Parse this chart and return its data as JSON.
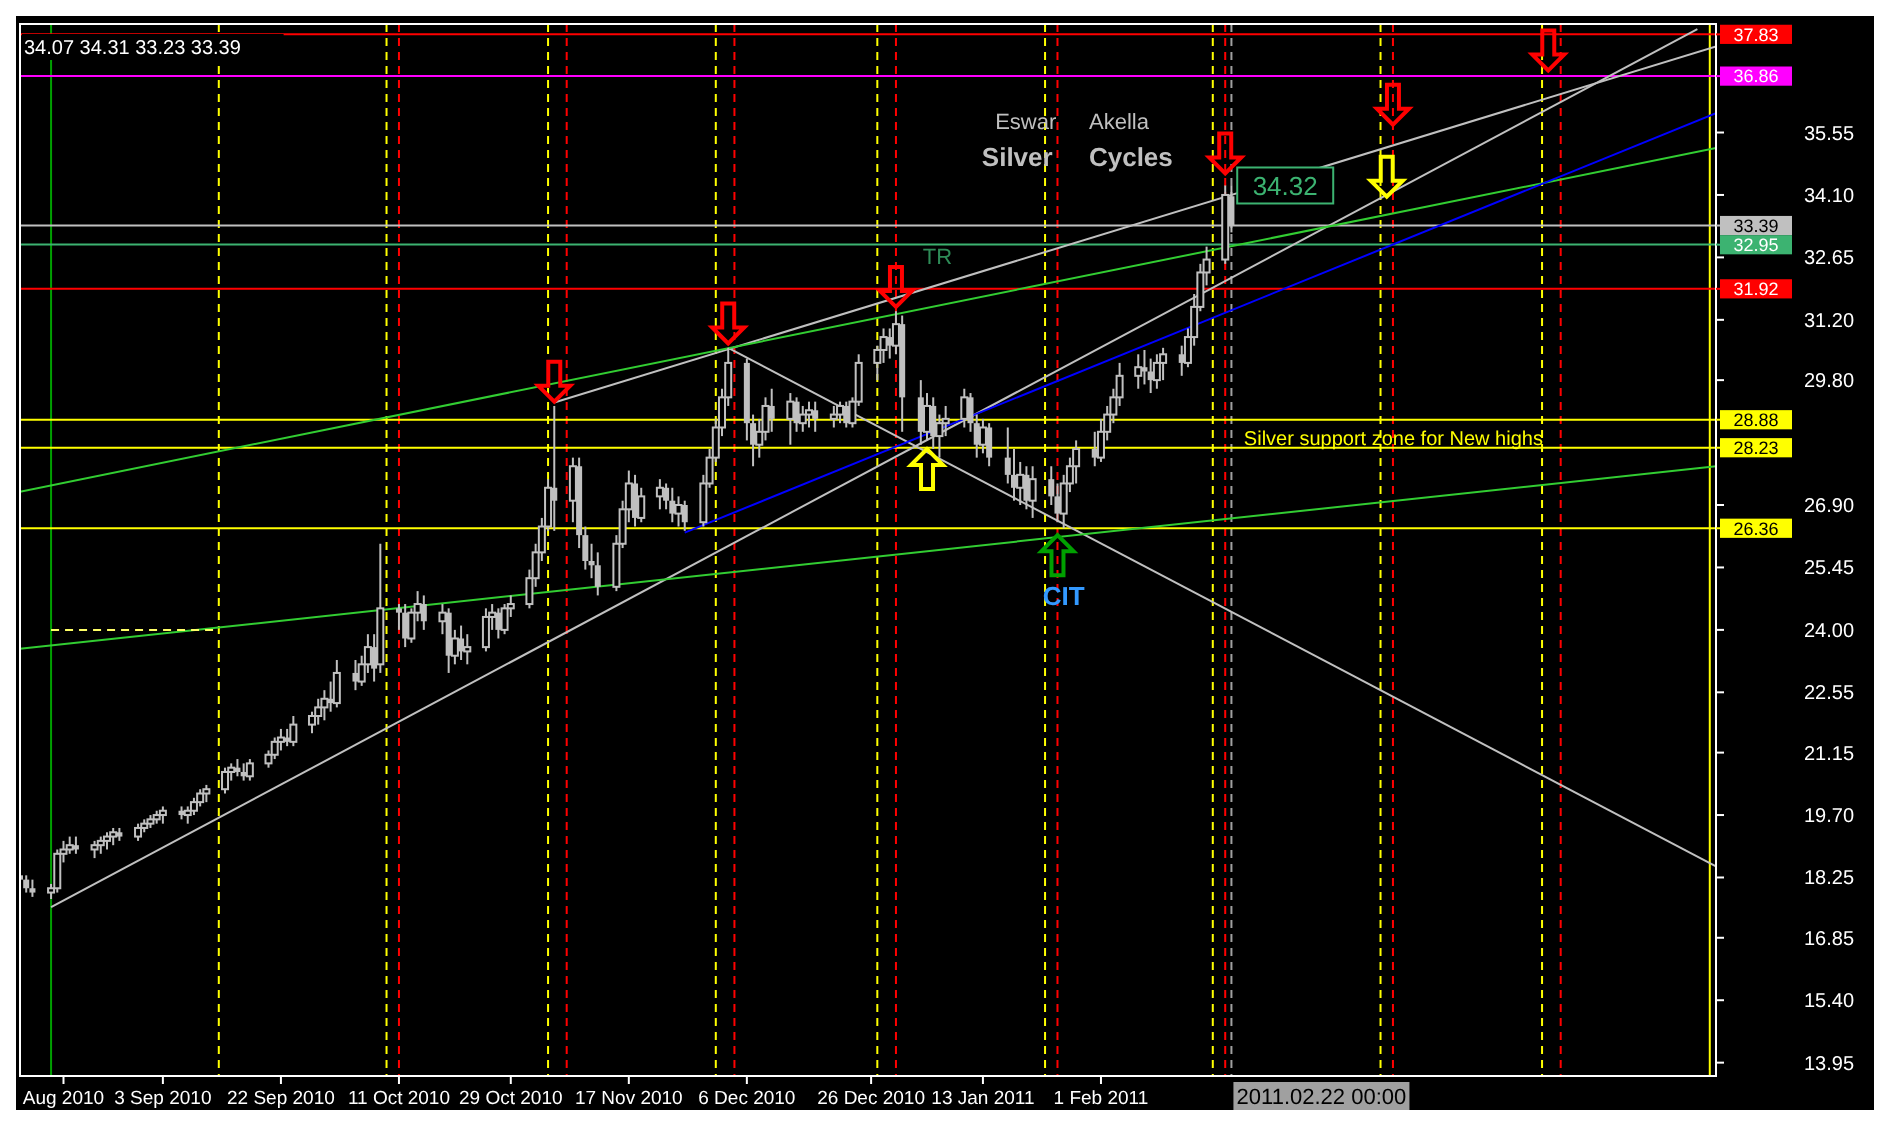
{
  "chart_data": {
    "type": "candlestick",
    "color": "#c0c0c0",
    "x": [
      "2010-08-11",
      "2010-08-12",
      "2010-08-13",
      "2010-08-16",
      "2010-08-17",
      "2010-08-18",
      "2010-08-19",
      "2010-08-20",
      "2010-08-23",
      "2010-08-24",
      "2010-08-25",
      "2010-08-26",
      "2010-08-27",
      "2010-08-30",
      "2010-08-31",
      "2010-09-01",
      "2010-09-02",
      "2010-09-03",
      "2010-09-06",
      "2010-09-07",
      "2010-09-08",
      "2010-09-09",
      "2010-09-10",
      "2010-09-13",
      "2010-09-14",
      "2010-09-15",
      "2010-09-16",
      "2010-09-17",
      "2010-09-20",
      "2010-09-21",
      "2010-09-22",
      "2010-09-23",
      "2010-09-24",
      "2010-09-27",
      "2010-09-28",
      "2010-09-29",
      "2010-09-30",
      "2010-10-01",
      "2010-10-04",
      "2010-10-05",
      "2010-10-06",
      "2010-10-07",
      "2010-10-08",
      "2010-10-11",
      "2010-10-12",
      "2010-10-13",
      "2010-10-14",
      "2010-10-15",
      "2010-10-18",
      "2010-10-19",
      "2010-10-20",
      "2010-10-21",
      "2010-10-22",
      "2010-10-25",
      "2010-10-26",
      "2010-10-27",
      "2010-10-28",
      "2010-10-29",
      "2010-11-01",
      "2010-11-02",
      "2010-11-03",
      "2010-11-04",
      "2010-11-05",
      "2010-11-08",
      "2010-11-09",
      "2010-11-10",
      "2010-11-11",
      "2010-11-12",
      "2010-11-15",
      "2010-11-16",
      "2010-11-17",
      "2010-11-18",
      "2010-11-19",
      "2010-11-22",
      "2010-11-23",
      "2010-11-24",
      "2010-11-25",
      "2010-11-26",
      "2010-11-29",
      "2010-11-30",
      "2010-12-01",
      "2010-12-02",
      "2010-12-03",
      "2010-12-06",
      "2010-12-07",
      "2010-12-08",
      "2010-12-09",
      "2010-12-10",
      "2010-12-13",
      "2010-12-14",
      "2010-12-15",
      "2010-12-16",
      "2010-12-17",
      "2010-12-20",
      "2010-12-21",
      "2010-12-22",
      "2010-12-23",
      "2010-12-24",
      "2010-12-27",
      "2010-12-28",
      "2010-12-29",
      "2010-12-30",
      "2010-12-31",
      "2011-01-03",
      "2011-01-04",
      "2011-01-05",
      "2011-01-06",
      "2011-01-07",
      "2011-01-10",
      "2011-01-11",
      "2011-01-12",
      "2011-01-13",
      "2011-01-14",
      "2011-01-17",
      "2011-01-18",
      "2011-01-19",
      "2011-01-20",
      "2011-01-21",
      "2011-01-24",
      "2011-01-25",
      "2011-01-26",
      "2011-01-27",
      "2011-01-28",
      "2011-01-31",
      "2011-02-01",
      "2011-02-02",
      "2011-02-03",
      "2011-02-04",
      "2011-02-07",
      "2011-02-08",
      "2011-02-09",
      "2011-02-10",
      "2011-02-11",
      "2011-02-14",
      "2011-02-15",
      "2011-02-16",
      "2011-02-17",
      "2011-02-18",
      "2011-02-21",
      "2011-02-22"
    ],
    "ohlc": [
      [
        18.3,
        18.5,
        18.1,
        18.2
      ],
      [
        18.2,
        18.3,
        17.9,
        18.0
      ],
      [
        18.0,
        18.2,
        17.8,
        17.9
      ],
      [
        17.9,
        18.1,
        17.75,
        18.0
      ],
      [
        18.0,
        18.9,
        17.9,
        18.8
      ],
      [
        18.8,
        19.1,
        18.6,
        18.9
      ],
      [
        18.9,
        19.2,
        18.8,
        19.0
      ],
      [
        19.0,
        19.2,
        18.8,
        18.9
      ],
      [
        18.9,
        19.1,
        18.7,
        19.0
      ],
      [
        19.0,
        19.2,
        18.8,
        19.1
      ],
      [
        19.1,
        19.3,
        18.9,
        19.2
      ],
      [
        19.2,
        19.4,
        19.0,
        19.3
      ],
      [
        19.3,
        19.4,
        19.1,
        19.2
      ],
      [
        19.2,
        19.5,
        19.1,
        19.4
      ],
      [
        19.4,
        19.6,
        19.3,
        19.5
      ],
      [
        19.5,
        19.7,
        19.4,
        19.6
      ],
      [
        19.6,
        19.8,
        19.5,
        19.7
      ],
      [
        19.7,
        19.9,
        19.5,
        19.8
      ],
      [
        19.8,
        19.9,
        19.6,
        19.7
      ],
      [
        19.7,
        19.9,
        19.5,
        19.8
      ],
      [
        19.8,
        20.1,
        19.7,
        20.0
      ],
      [
        20.0,
        20.3,
        19.9,
        20.2
      ],
      [
        20.2,
        20.4,
        20.0,
        20.3
      ],
      [
        20.3,
        20.8,
        20.2,
        20.7
      ],
      [
        20.7,
        20.9,
        20.5,
        20.8
      ],
      [
        20.8,
        21.0,
        20.6,
        20.7
      ],
      [
        20.7,
        20.9,
        20.5,
        20.6
      ],
      [
        20.6,
        21.0,
        20.5,
        20.9
      ],
      [
        20.9,
        21.2,
        20.8,
        21.1
      ],
      [
        21.1,
        21.5,
        21.0,
        21.4
      ],
      [
        21.4,
        21.7,
        21.2,
        21.5
      ],
      [
        21.5,
        21.7,
        21.3,
        21.4
      ],
      [
        21.4,
        22.0,
        21.3,
        21.8
      ],
      [
        21.8,
        22.1,
        21.6,
        22.0
      ],
      [
        22.0,
        22.4,
        21.8,
        22.2
      ],
      [
        22.2,
        22.6,
        21.9,
        22.4
      ],
      [
        22.4,
        22.8,
        22.1,
        22.3
      ],
      [
        22.3,
        23.3,
        22.2,
        23.0
      ],
      [
        23.0,
        23.3,
        22.6,
        22.8
      ],
      [
        22.8,
        23.4,
        22.7,
        23.2
      ],
      [
        23.2,
        23.9,
        23.0,
        23.6
      ],
      [
        23.6,
        23.9,
        22.8,
        23.1
      ],
      [
        23.2,
        26.0,
        23.0,
        24.5
      ],
      [
        24.5,
        24.6,
        24.0,
        24.4
      ],
      [
        24.4,
        24.6,
        23.6,
        23.8
      ],
      [
        23.8,
        24.5,
        23.7,
        24.4
      ],
      [
        24.4,
        24.9,
        24.2,
        24.6
      ],
      [
        24.6,
        24.8,
        24.0,
        24.2
      ],
      [
        24.2,
        24.6,
        23.9,
        24.4
      ],
      [
        24.4,
        24.5,
        23.0,
        23.4
      ],
      [
        23.4,
        24.0,
        23.2,
        23.8
      ],
      [
        23.8,
        24.1,
        23.3,
        23.5
      ],
      [
        23.5,
        23.9,
        23.2,
        23.6
      ],
      [
        23.6,
        24.5,
        23.5,
        24.3
      ],
      [
        24.3,
        24.6,
        24.0,
        24.4
      ],
      [
        24.4,
        24.5,
        23.8,
        24.0
      ],
      [
        24.0,
        24.6,
        23.9,
        24.5
      ],
      [
        24.5,
        24.8,
        24.3,
        24.6
      ],
      [
        24.6,
        25.4,
        24.5,
        25.2
      ],
      [
        25.2,
        26.0,
        25.0,
        25.8
      ],
      [
        25.8,
        26.6,
        25.6,
        26.4
      ],
      [
        26.4,
        27.5,
        26.3,
        27.3
      ],
      [
        27.3,
        29.2,
        26.3,
        27.0
      ],
      [
        27.0,
        28.0,
        26.5,
        27.8
      ],
      [
        27.8,
        28.0,
        25.9,
        26.2
      ],
      [
        26.2,
        26.4,
        25.4,
        25.6
      ],
      [
        25.6,
        26.0,
        25.2,
        25.5
      ],
      [
        25.5,
        25.8,
        24.8,
        25.0
      ],
      [
        25.0,
        26.2,
        24.9,
        26.0
      ],
      [
        26.0,
        27.0,
        25.9,
        26.8
      ],
      [
        26.8,
        27.7,
        26.5,
        27.4
      ],
      [
        27.4,
        27.6,
        26.4,
        26.6
      ],
      [
        26.6,
        27.3,
        26.5,
        27.1
      ],
      [
        27.1,
        27.5,
        26.8,
        27.3
      ],
      [
        27.3,
        27.4,
        26.8,
        27.0
      ],
      [
        27.0,
        27.3,
        26.5,
        26.7
      ],
      [
        26.7,
        27.1,
        26.4,
        26.9
      ],
      [
        26.9,
        27.0,
        26.3,
        26.5
      ],
      [
        26.5,
        27.6,
        26.4,
        27.4
      ],
      [
        27.4,
        28.2,
        27.3,
        28.0
      ],
      [
        28.0,
        28.9,
        27.9,
        28.7
      ],
      [
        28.7,
        29.6,
        28.5,
        29.4
      ],
      [
        29.4,
        30.55,
        29.2,
        30.2
      ],
      [
        30.2,
        30.3,
        28.4,
        28.8
      ],
      [
        28.8,
        29.0,
        27.8,
        28.3
      ],
      [
        28.3,
        28.9,
        28.0,
        28.6
      ],
      [
        28.6,
        29.4,
        28.4,
        29.2
      ],
      [
        29.2,
        29.6,
        28.6,
        28.9
      ],
      [
        28.9,
        29.5,
        28.3,
        29.3
      ],
      [
        29.3,
        29.4,
        28.6,
        28.8
      ],
      [
        28.8,
        29.2,
        28.6,
        29.0
      ],
      [
        29.0,
        29.3,
        28.7,
        29.1
      ],
      [
        29.1,
        29.3,
        28.6,
        28.9
      ],
      [
        28.9,
        29.2,
        28.7,
        29.0
      ],
      [
        29.0,
        29.3,
        28.8,
        29.2
      ],
      [
        29.2,
        29.3,
        28.7,
        28.8
      ],
      [
        28.8,
        29.4,
        28.7,
        29.3
      ],
      [
        29.3,
        30.4,
        29.2,
        30.2
      ],
      [
        30.2,
        30.6,
        29.8,
        30.5
      ],
      [
        30.5,
        31.0,
        30.2,
        30.8
      ],
      [
        30.8,
        31.0,
        30.3,
        30.6
      ],
      [
        30.6,
        31.4,
        30.4,
        31.1
      ],
      [
        31.1,
        31.3,
        28.6,
        29.4
      ],
      [
        29.4,
        29.8,
        28.3,
        28.6
      ],
      [
        28.6,
        29.5,
        28.4,
        29.2
      ],
      [
        29.2,
        29.4,
        28.2,
        28.5
      ],
      [
        28.5,
        29.0,
        28.0,
        28.8
      ],
      [
        28.8,
        29.2,
        28.5,
        28.9
      ],
      [
        28.9,
        29.6,
        28.7,
        29.4
      ],
      [
        29.4,
        29.5,
        28.6,
        28.8
      ],
      [
        28.8,
        29.0,
        28.0,
        28.3
      ],
      [
        28.3,
        28.9,
        28.1,
        28.7
      ],
      [
        28.7,
        28.8,
        27.8,
        28.0
      ],
      [
        28.0,
        28.7,
        27.4,
        27.6
      ],
      [
        27.6,
        28.2,
        27.0,
        27.3
      ],
      [
        27.3,
        27.9,
        26.9,
        27.6
      ],
      [
        27.6,
        27.8,
        26.8,
        27.0
      ],
      [
        27.0,
        27.8,
        26.6,
        27.5
      ],
      [
        27.5,
        27.8,
        26.9,
        27.1
      ],
      [
        27.1,
        27.4,
        26.5,
        26.7
      ],
      [
        26.7,
        27.6,
        26.36,
        27.4
      ],
      [
        27.4,
        28.0,
        27.2,
        27.8
      ],
      [
        27.8,
        28.4,
        27.4,
        28.2
      ],
      [
        28.2,
        28.6,
        27.8,
        28.0
      ],
      [
        28.0,
        28.9,
        27.9,
        28.6
      ],
      [
        28.6,
        29.2,
        28.4,
        29.0
      ],
      [
        29.0,
        29.6,
        28.8,
        29.4
      ],
      [
        29.4,
        30.2,
        29.2,
        29.9
      ],
      [
        29.9,
        30.4,
        29.6,
        30.1
      ],
      [
        30.1,
        30.5,
        29.7,
        30.0
      ],
      [
        30.0,
        30.3,
        29.5,
        29.8
      ],
      [
        29.8,
        30.4,
        29.6,
        30.2
      ],
      [
        30.2,
        30.55,
        29.8,
        30.4
      ],
      [
        30.4,
        30.6,
        29.9,
        30.2
      ],
      [
        30.2,
        31.0,
        30.1,
        30.8
      ],
      [
        30.8,
        31.8,
        30.6,
        31.5
      ],
      [
        31.5,
        32.5,
        31.4,
        32.3
      ],
      [
        32.3,
        32.9,
        32.0,
        32.6
      ],
      [
        32.6,
        34.32,
        32.5,
        34.1
      ],
      [
        34.07,
        34.31,
        33.23,
        33.39
      ]
    ],
    "series": [
      {
        "type": "line",
        "color": "#c0c0c0",
        "x": [
          "2010-08-16",
          "2011-05-08"
        ],
        "values": [
          17.56,
          37.95
        ]
      },
      {
        "type": "line",
        "color": "#c0c0c0",
        "x": [
          "2010-11-05",
          "2011-05-11"
        ],
        "values": [
          29.28,
          37.55
        ]
      },
      {
        "type": "line",
        "color": "#c0c0c0",
        "x": [
          "2010-12-03",
          "2011-05-11"
        ],
        "values": [
          30.55,
          18.51
        ]
      },
      {
        "type": "line",
        "color": "#32cd32",
        "x": [
          "2010-08-11",
          "2011-05-11"
        ],
        "values": [
          27.21,
          35.19
        ]
      },
      {
        "type": "line",
        "color": "#32cd32",
        "x": [
          "2010-08-11",
          "2011-05-11"
        ],
        "values": [
          23.56,
          27.8
        ]
      },
      {
        "type": "line",
        "color": "#0000ff",
        "x": [
          "2010-11-26",
          "2011-05-11"
        ],
        "values": [
          26.26,
          36.0
        ]
      },
      {
        "type": "line",
        "color": "#ffff66",
        "line_style": "dashed",
        "x": [
          "2010-08-16",
          "2010-09-12"
        ],
        "values": [
          24.0,
          24.0
        ]
      }
    ],
    "xlim": [
      "2010-08-11",
      "2011-05-11"
    ],
    "ylim": [
      13.64,
      38.07
    ],
    "xticks": [
      {
        "value": "2010-08-18",
        "label": "Aug 2010"
      },
      {
        "value": "2010-09-03",
        "label": "3 Sep 2010"
      },
      {
        "value": "2010-09-22",
        "label": "22 Sep 2010"
      },
      {
        "value": "2010-10-11",
        "label": "11 Oct 2010"
      },
      {
        "value": "2010-10-29",
        "label": "29 Oct 2010"
      },
      {
        "value": "2010-11-17",
        "label": "17 Nov 2010"
      },
      {
        "value": "2010-12-06",
        "label": "6 Dec 2010"
      },
      {
        "value": "2010-12-26",
        "label": "26 Dec 2010"
      },
      {
        "value": "2011-01-13",
        "label": "13 Jan 2011"
      },
      {
        "value": "2011-02-01",
        "label": "1 Feb 2011"
      }
    ],
    "yticks": [
      {
        "value": 13.95,
        "label": "13.95"
      },
      {
        "value": 15.4,
        "label": "15.40"
      },
      {
        "value": 16.85,
        "label": "16.85"
      },
      {
        "value": 18.25,
        "label": "18.25"
      },
      {
        "value": 19.7,
        "label": "19.70"
      },
      {
        "value": 21.15,
        "label": "21.15"
      },
      {
        "value": 22.55,
        "label": "22.55"
      },
      {
        "value": 24,
        "label": "24.00"
      },
      {
        "value": 25.45,
        "label": "25.45"
      },
      {
        "value": 26.9,
        "label": "26.90"
      },
      {
        "value": 29.8,
        "label": "29.80"
      },
      {
        "value": 31.2,
        "label": "31.20"
      },
      {
        "value": 32.65,
        "label": "32.65"
      },
      {
        "value": 34.1,
        "label": "34.10"
      },
      {
        "value": 35.55,
        "label": "35.55"
      }
    ],
    "ref_lines": [
      {
        "axis": "x",
        "value": "2010-08-16",
        "color": "#00a000",
        "line_style": "solid"
      },
      {
        "axis": "x",
        "value": "2010-09-12",
        "color": "#ffff00",
        "line_style": "dashed"
      },
      {
        "axis": "x",
        "value": "2010-10-09",
        "color": "#ffff00",
        "line_style": "dashed"
      },
      {
        "axis": "x",
        "value": "2010-11-04",
        "color": "#ffff00",
        "line_style": "dashed"
      },
      {
        "axis": "x",
        "value": "2010-12-01",
        "color": "#ffff00",
        "line_style": "dashed"
      },
      {
        "axis": "x",
        "value": "2010-12-27",
        "color": "#ffff00",
        "line_style": "dashed"
      },
      {
        "axis": "x",
        "value": "2011-01-23",
        "color": "#ffff00",
        "line_style": "dashed"
      },
      {
        "axis": "x",
        "value": "2011-02-19",
        "color": "#ffff00",
        "line_style": "dashed"
      },
      {
        "axis": "x",
        "value": "2011-03-18",
        "color": "#ffff00",
        "line_style": "dashed"
      },
      {
        "axis": "x",
        "value": "2011-04-13",
        "color": "#ffff00",
        "line_style": "dashed"
      },
      {
        "axis": "x",
        "value": "2011-05-10",
        "color": "#ffff00",
        "line_style": "solid"
      },
      {
        "axis": "x",
        "value": "2010-10-11",
        "color": "#ff0000",
        "line_style": "dashed"
      },
      {
        "axis": "x",
        "value": "2010-11-07",
        "color": "#ff0000",
        "line_style": "dashed"
      },
      {
        "axis": "x",
        "value": "2010-12-04",
        "color": "#ff0000",
        "line_style": "dashed"
      },
      {
        "axis": "x",
        "value": "2010-12-30",
        "color": "#ff0000",
        "line_style": "dashed"
      },
      {
        "axis": "x",
        "value": "2011-01-25",
        "color": "#ff0000",
        "line_style": "dashed"
      },
      {
        "axis": "x",
        "value": "2011-02-21",
        "color": "#ff0000",
        "line_style": "dashed"
      },
      {
        "axis": "x",
        "value": "2011-03-20",
        "color": "#ff0000",
        "line_style": "dashed"
      },
      {
        "axis": "x",
        "value": "2011-04-16",
        "color": "#ff0000",
        "line_style": "dashed"
      },
      {
        "axis": "x",
        "value": "2011-02-22",
        "color": "#a0a0a0",
        "line_style": "dashed",
        "label": "2011.02.22 00:00"
      },
      {
        "axis": "y",
        "value": 37.83,
        "color": "#ff0000",
        "line_style": "solid",
        "label": "37.83"
      },
      {
        "axis": "y",
        "value": 36.86,
        "color": "#ff00ff",
        "line_style": "solid",
        "label": "36.86"
      },
      {
        "axis": "y",
        "value": 33.39,
        "color": "#c0c0c0",
        "line_style": "solid",
        "label": "33.39"
      },
      {
        "axis": "y",
        "value": 32.95,
        "color": "#3cb371",
        "line_style": "solid",
        "label": "32.95"
      },
      {
        "axis": "y",
        "value": 31.92,
        "color": "#ff0000",
        "line_style": "solid",
        "label": "31.92"
      },
      {
        "axis": "y",
        "value": 28.88,
        "color": "#ffff00",
        "line_style": "solid",
        "label": "28.88"
      },
      {
        "axis": "y",
        "value": 28.23,
        "color": "#ffff00",
        "line_style": "solid",
        "label": "28.23"
      },
      {
        "axis": "y",
        "value": 26.36,
        "color": "#ffff00",
        "line_style": "solid",
        "label": "26.36"
      }
    ],
    "annotations": [
      "34.07 34.31 33.23 33.39",
      "Eswar",
      "Akella",
      "Silver",
      "Cycles",
      "TR",
      {
        "text": "34.32",
        "x": "2011-02-21",
        "y": 34.32
      },
      {
        "text": "Silver support  zone for New highs",
        "x": "2011-02-24",
        "y": 28.45
      },
      {
        "text": "CIT",
        "x": "2011-01-26",
        "y": 24.8
      }
    ]
  }
}
